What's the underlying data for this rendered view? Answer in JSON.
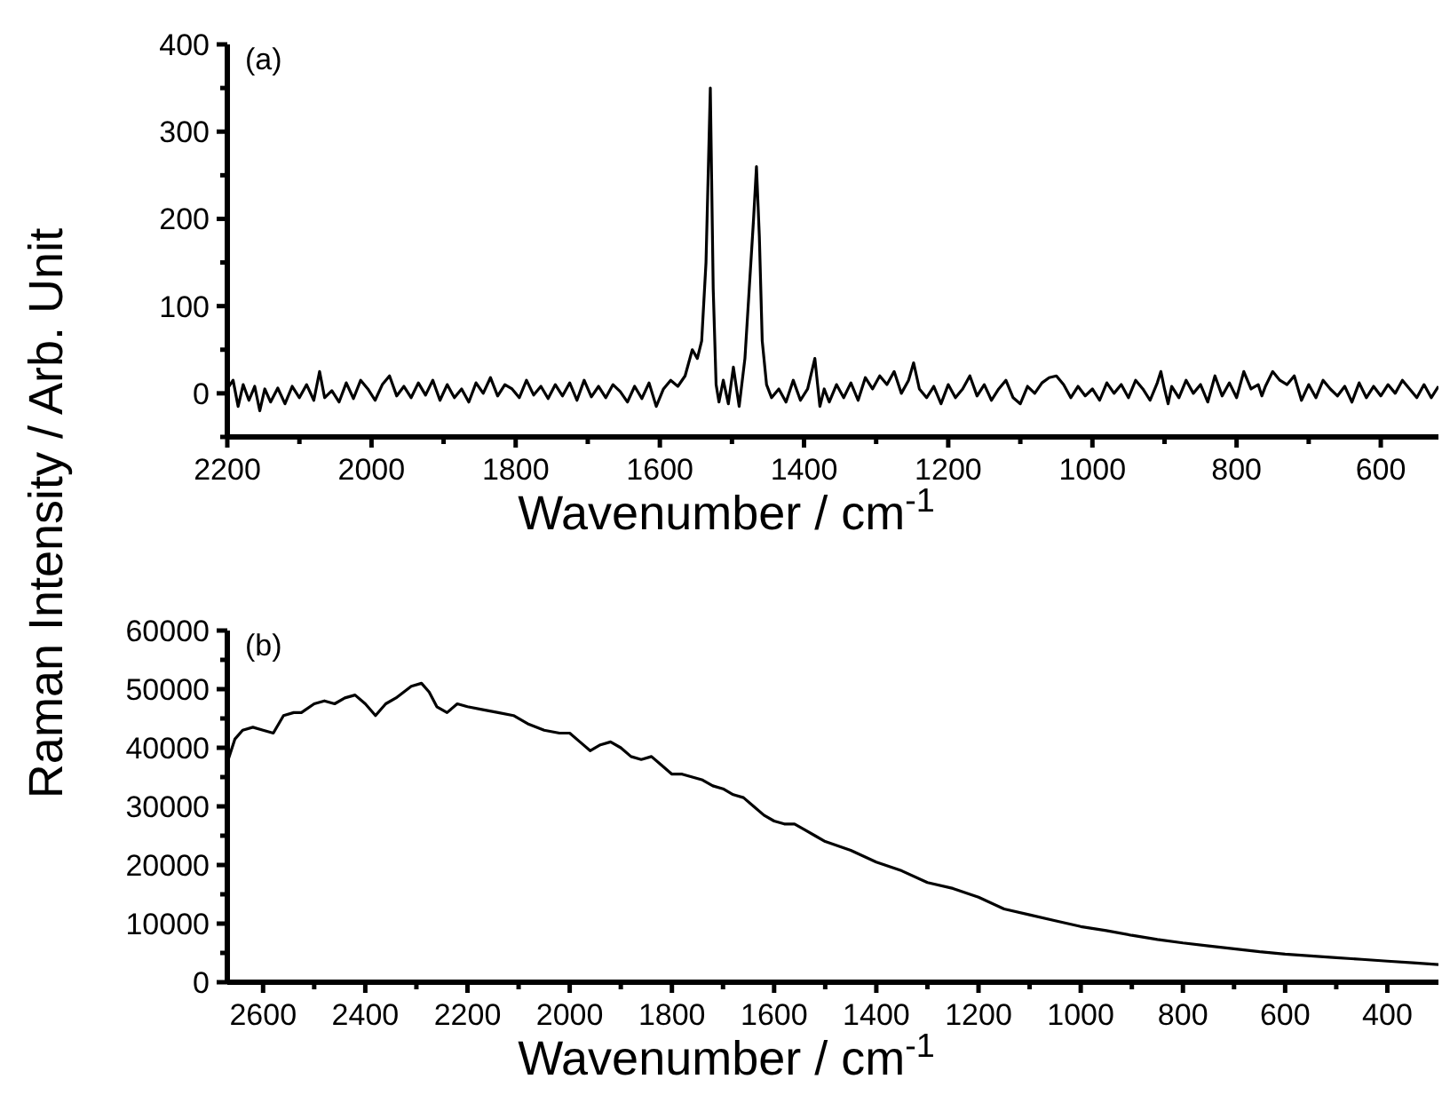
{
  "chart_data": [
    {
      "type": "line",
      "ylabel": "Raman Intensity / Arb. Unit",
      "xlabel": "Wavenumber / cm$^{-1}$",
      "annotations": [
        "(a)"
      ],
      "xlim": [
        2200,
        520
      ],
      "ylim": [
        -50,
        400
      ],
      "xticks": [
        2200,
        {
          "value": 2100,
          "label": null
        },
        2000,
        {
          "value": 1900,
          "label": null
        },
        1800,
        {
          "value": 1700,
          "label": null
        },
        1600,
        {
          "value": 1500,
          "label": null
        },
        1400,
        {
          "value": 1300,
          "label": null
        },
        1200,
        {
          "value": 1100,
          "label": null
        },
        1000,
        {
          "value": 900,
          "label": null
        },
        800,
        {
          "value": 700,
          "label": null
        },
        600
      ],
      "yticks": [
        {
          "value": -50,
          "label": null
        },
        0,
        {
          "value": 50,
          "label": null
        },
        100,
        {
          "value": 150,
          "label": null
        },
        200,
        {
          "value": 250,
          "label": null
        },
        300,
        {
          "value": 350,
          "label": null
        },
        400
      ],
      "grid": false,
      "series": [
        {
          "color": "#000000",
          "x": [
            2200,
            2192,
            2185,
            2178,
            2170,
            2162,
            2155,
            2148,
            2140,
            2130,
            2120,
            2110,
            2100,
            2090,
            2080,
            2072,
            2065,
            2055,
            2045,
            2035,
            2025,
            2015,
            2005,
            1995,
            1985,
            1975,
            1965,
            1955,
            1945,
            1935,
            1925,
            1915,
            1905,
            1895,
            1885,
            1875,
            1865,
            1855,
            1845,
            1835,
            1825,
            1815,
            1805,
            1795,
            1785,
            1775,
            1765,
            1755,
            1745,
            1735,
            1725,
            1715,
            1705,
            1695,
            1685,
            1675,
            1665,
            1655,
            1645,
            1635,
            1625,
            1615,
            1605,
            1595,
            1585,
            1575,
            1565,
            1555,
            1548,
            1542,
            1536,
            1530,
            1526,
            1522,
            1518,
            1512,
            1505,
            1498,
            1490,
            1482,
            1476,
            1470,
            1466,
            1462,
            1458,
            1452,
            1445,
            1435,
            1425,
            1415,
            1405,
            1395,
            1385,
            1378,
            1372,
            1365,
            1355,
            1345,
            1335,
            1325,
            1315,
            1305,
            1295,
            1285,
            1275,
            1265,
            1255,
            1248,
            1240,
            1230,
            1220,
            1210,
            1200,
            1190,
            1180,
            1170,
            1160,
            1150,
            1140,
            1130,
            1120,
            1110,
            1100,
            1090,
            1080,
            1070,
            1060,
            1050,
            1040,
            1030,
            1020,
            1010,
            1000,
            990,
            980,
            970,
            960,
            950,
            940,
            930,
            920,
            910,
            905,
            900,
            895,
            890,
            880,
            870,
            860,
            850,
            840,
            830,
            820,
            810,
            800,
            790,
            780,
            770,
            765,
            760,
            750,
            740,
            730,
            720,
            710,
            700,
            690,
            680,
            670,
            660,
            650,
            640,
            630,
            620,
            610,
            600,
            590,
            580,
            570,
            560,
            550,
            540,
            530,
            520
          ],
          "values": [
            5,
            15,
            -15,
            10,
            -8,
            8,
            -20,
            5,
            -10,
            6,
            -12,
            8,
            -5,
            10,
            -8,
            25,
            -5,
            3,
            -10,
            12,
            -6,
            15,
            5,
            -8,
            10,
            20,
            -3,
            8,
            -5,
            12,
            -2,
            15,
            -8,
            10,
            -5,
            5,
            -10,
            12,
            0,
            18,
            -3,
            10,
            5,
            -5,
            15,
            -2,
            8,
            -6,
            10,
            -3,
            12,
            -8,
            15,
            -4,
            8,
            -5,
            10,
            2,
            -10,
            8,
            -6,
            12,
            -15,
            5,
            15,
            8,
            20,
            50,
            40,
            60,
            150,
            350,
            120,
            10,
            -10,
            15,
            -12,
            30,
            -15,
            40,
            120,
            200,
            260,
            180,
            60,
            10,
            -5,
            5,
            -10,
            15,
            -8,
            5,
            40,
            -15,
            5,
            -10,
            10,
            -5,
            12,
            -8,
            18,
            5,
            20,
            10,
            25,
            0,
            15,
            35,
            5,
            -5,
            8,
            -12,
            10,
            -5,
            5,
            20,
            -3,
            10,
            -8,
            5,
            15,
            -5,
            -12,
            8,
            0,
            12,
            18,
            20,
            10,
            -5,
            8,
            -3,
            5,
            -8,
            12,
            0,
            10,
            -5,
            15,
            5,
            -8,
            12,
            25,
            5,
            -12,
            8,
            -5,
            15,
            0,
            10,
            -10,
            20,
            -3,
            12,
            -5,
            25,
            5,
            10,
            -3,
            8,
            25,
            15,
            10,
            20,
            -8,
            10,
            -5,
            15,
            5,
            -3,
            8,
            -10,
            12,
            -5,
            8,
            -3,
            10,
            0,
            15,
            5,
            -5,
            10,
            -5,
            8
          ]
        }
      ]
    },
    {
      "type": "line",
      "xlabel": "Wavenumber / cm$^{-1}$",
      "annotations": [
        "(b)"
      ],
      "xlim": [
        2670,
        300
      ],
      "ylim": [
        0,
        60000
      ],
      "xticks": [
        2600,
        {
          "value": 2500,
          "label": null
        },
        2400,
        {
          "value": 2300,
          "label": null
        },
        2200,
        {
          "value": 2100,
          "label": null
        },
        2000,
        {
          "value": 1900,
          "label": null
        },
        1800,
        {
          "value": 1700,
          "label": null
        },
        1600,
        {
          "value": 1500,
          "label": null
        },
        1400,
        {
          "value": 1300,
          "label": null
        },
        1200,
        {
          "value": 1100,
          "label": null
        },
        1000,
        {
          "value": 900,
          "label": null
        },
        800,
        {
          "value": 700,
          "label": null
        },
        600,
        {
          "value": 500,
          "label": null
        },
        400
      ],
      "yticks": [
        0,
        {
          "value": 5000,
          "label": null
        },
        10000,
        {
          "value": 15000,
          "label": null
        },
        20000,
        {
          "value": 25000,
          "label": null
        },
        30000,
        {
          "value": 35000,
          "label": null
        },
        40000,
        {
          "value": 45000,
          "label": null
        },
        50000,
        {
          "value": 55000,
          "label": null
        },
        60000
      ],
      "grid": false,
      "series": [
        {
          "color": "#000000",
          "x": [
            2670,
            2655,
            2640,
            2620,
            2600,
            2580,
            2560,
            2540,
            2525,
            2500,
            2480,
            2460,
            2440,
            2420,
            2400,
            2380,
            2360,
            2340,
            2310,
            2290,
            2275,
            2260,
            2240,
            2220,
            2200,
            2170,
            2140,
            2110,
            2080,
            2050,
            2020,
            2000,
            1980,
            1960,
            1940,
            1920,
            1900,
            1880,
            1860,
            1840,
            1820,
            1800,
            1780,
            1760,
            1740,
            1720,
            1700,
            1680,
            1660,
            1640,
            1620,
            1600,
            1580,
            1560,
            1540,
            1520,
            1500,
            1450,
            1400,
            1350,
            1300,
            1250,
            1200,
            1150,
            1100,
            1050,
            1000,
            950,
            900,
            850,
            800,
            750,
            700,
            650,
            600,
            550,
            500,
            450,
            400,
            350,
            300
          ],
          "values": [
            37500,
            41500,
            43000,
            43500,
            43000,
            42500,
            45500,
            46000,
            46000,
            47500,
            48000,
            47500,
            48500,
            49000,
            47500,
            45500,
            47500,
            48500,
            50500,
            51000,
            49500,
            47000,
            46000,
            47500,
            47000,
            46500,
            46000,
            45500,
            44000,
            43000,
            42500,
            42500,
            41000,
            39500,
            40500,
            41000,
            40000,
            38500,
            38000,
            38500,
            37000,
            35500,
            35500,
            35000,
            34500,
            33500,
            33000,
            32000,
            31500,
            30000,
            28500,
            27500,
            27000,
            27000,
            26000,
            25000,
            24000,
            22500,
            20500,
            19000,
            17000,
            16000,
            14500,
            12500,
            11500,
            10500,
            9500,
            8800,
            8000,
            7300,
            6700,
            6200,
            5700,
            5200,
            4800,
            4500,
            4200,
            3900,
            3600,
            3300,
            3000
          ]
        }
      ]
    }
  ]
}
